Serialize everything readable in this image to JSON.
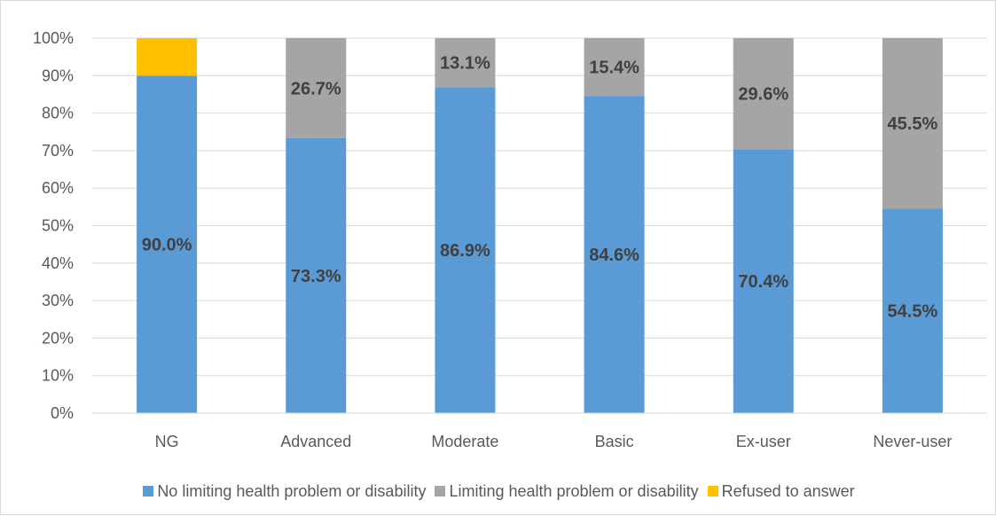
{
  "chart_data": {
    "type": "bar",
    "stacked": true,
    "percent_stacked": true,
    "categories": [
      "NG",
      "Advanced",
      "Moderate",
      "Basic",
      "Ex-user",
      "Never-user"
    ],
    "series": [
      {
        "name": "No limiting health problem or disability",
        "color": "#5b9bd5",
        "values": [
          90.0,
          73.3,
          86.9,
          84.6,
          70.4,
          54.5
        ],
        "labels": [
          "90.0%",
          "73.3%",
          "86.9%",
          "84.6%",
          "70.4%",
          "54.5%"
        ]
      },
      {
        "name": "Limiting health problem or disability",
        "color": "#a5a5a5",
        "values": [
          0,
          26.7,
          13.1,
          15.4,
          29.6,
          45.5
        ],
        "labels": [
          "",
          "26.7%",
          "13.1%",
          "15.4%",
          "29.6%",
          "45.5%"
        ]
      },
      {
        "name": "Refused to answer",
        "color": "#ffc000",
        "values": [
          10.0,
          0,
          0,
          0,
          0,
          0
        ],
        "labels": [
          "",
          "",
          "",
          "",
          "",
          ""
        ]
      }
    ],
    "ylim": [
      0,
      100
    ],
    "y_ticks": [
      "0%",
      "10%",
      "20%",
      "30%",
      "40%",
      "50%",
      "60%",
      "70%",
      "80%",
      "90%",
      "100%"
    ],
    "grid": true,
    "legend_position": "bottom"
  }
}
